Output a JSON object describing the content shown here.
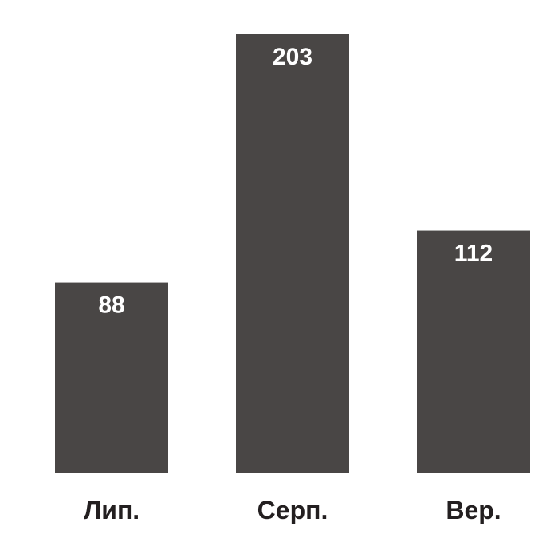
{
  "chart_data": {
    "type": "bar",
    "categories": [
      "Лип.",
      "Серп.",
      "Вер."
    ],
    "values": [
      88,
      203,
      112
    ],
    "title": "",
    "xlabel": "",
    "ylabel": "",
    "ylim": [
      0,
      203
    ],
    "grid": false,
    "legend": "none",
    "data_labels": "inside-top",
    "colors": {
      "bar": "#494645",
      "bar_label": "#ffffff",
      "category_label": "#231f20",
      "background": "#ffffff"
    }
  }
}
